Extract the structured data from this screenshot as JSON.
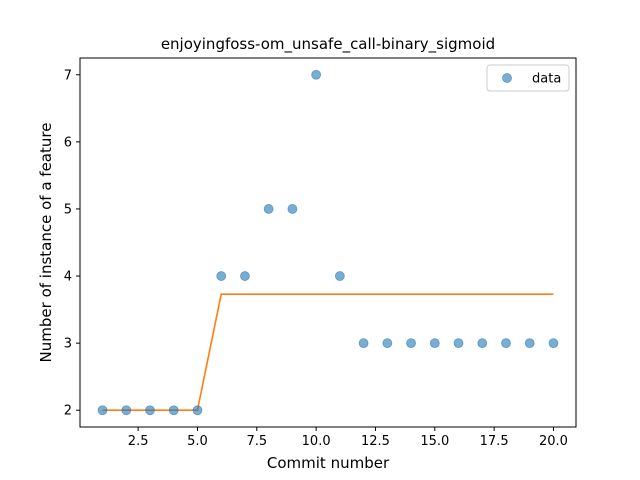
{
  "chart_data": {
    "type": "scatter",
    "title": "enjoyingfoss-om_unsafe_call-binary_sigmoid",
    "xlabel": "Commit number",
    "ylabel": "Number of instance of a feature",
    "xlim": [
      0.05,
      20.95
    ],
    "ylim": [
      1.75,
      7.25
    ],
    "xticks": [
      2.5,
      5.0,
      7.5,
      10.0,
      12.5,
      15.0,
      17.5,
      20.0
    ],
    "xtick_labels": [
      "2.5",
      "5.0",
      "7.5",
      "10.0",
      "12.5",
      "15.0",
      "17.5",
      "20.0"
    ],
    "yticks": [
      2,
      3,
      4,
      5,
      6,
      7
    ],
    "ytick_labels": [
      "2",
      "3",
      "4",
      "5",
      "6",
      "7"
    ],
    "grid": false,
    "legend": {
      "position": "top-right",
      "entries": [
        "data"
      ]
    },
    "series": [
      {
        "name": "data",
        "kind": "scatter",
        "color": "#1f77b4",
        "x": [
          1,
          2,
          3,
          4,
          5,
          6,
          7,
          8,
          9,
          10,
          11,
          12,
          13,
          14,
          15,
          16,
          17,
          18,
          19,
          20
        ],
        "y": [
          2,
          2,
          2,
          2,
          2,
          4,
          4,
          5,
          5,
          7,
          4,
          3,
          3,
          3,
          3,
          3,
          3,
          3,
          3,
          3
        ]
      },
      {
        "kind": "line",
        "color": "#ff7f0e",
        "x": [
          1,
          2,
          3,
          4,
          5,
          6,
          7,
          8,
          9,
          10,
          11,
          12,
          13,
          14,
          15,
          16,
          17,
          18,
          19,
          20
        ],
        "y": [
          2,
          2,
          2,
          2,
          2,
          3.73,
          3.73,
          3.73,
          3.73,
          3.73,
          3.73,
          3.73,
          3.73,
          3.73,
          3.73,
          3.73,
          3.73,
          3.73,
          3.73,
          3.73
        ]
      }
    ]
  }
}
